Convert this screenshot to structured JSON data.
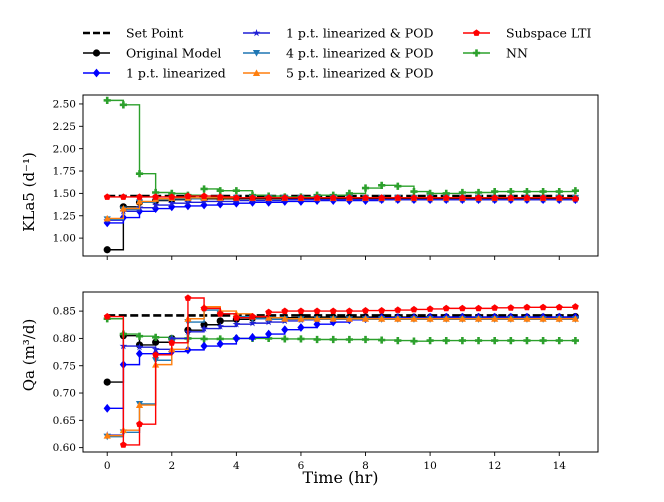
{
  "chart_data": {
    "type": "line",
    "drawstyle": "steps-post",
    "xlabel": "Time (hr)",
    "legend": {
      "placement": "top-center",
      "columns": 3,
      "entries": [
        "Set Point",
        "Original Model",
        "1 p.t. linearized",
        "1 p.t. linearized & POD",
        "4 p.t. linearized & POD",
        "5 p.t. linearized & POD",
        "Subspace LTI",
        "NN"
      ]
    },
    "styles": [
      {
        "name": "Set Point",
        "color": "#000000",
        "marker": "none",
        "dash": true
      },
      {
        "name": "Original Model",
        "color": "#000000",
        "marker": "circle"
      },
      {
        "name": "1 p.t. linearized",
        "color": "#0000ff",
        "marker": "diamond"
      },
      {
        "name": "1 p.t. linearized & POD",
        "color": "#1f1fd6",
        "marker": "star"
      },
      {
        "name": "4 p.t. linearized & POD",
        "color": "#1f77b4",
        "marker": "tri-down"
      },
      {
        "name": "5 p.t. linearized & POD",
        "color": "#ff7f0e",
        "marker": "tri-up"
      },
      {
        "name": "Subspace LTI",
        "color": "#ff0000",
        "marker": "pentagon"
      },
      {
        "name": "NN",
        "color": "#2ca02c",
        "marker": "plus"
      }
    ],
    "x": [
      0,
      0.5,
      1,
      1.5,
      2,
      2.5,
      3,
      3.5,
      4,
      4.5,
      5,
      5.5,
      6,
      6.5,
      7,
      7.5,
      8,
      8.5,
      9,
      9.5,
      10,
      10.5,
      11,
      11.5,
      12,
      12.5,
      13,
      13.5,
      14,
      14.5
    ],
    "xlim": [
      -0.75,
      15.2
    ],
    "xticks": [
      0,
      2,
      4,
      6,
      8,
      10,
      12,
      14
    ],
    "panels": [
      {
        "ylabel": "KLa5 (d⁻¹)",
        "ylim": [
          0.8,
          2.6
        ],
        "yticks": [
          1.0,
          1.25,
          1.5,
          1.75,
          2.0,
          2.25,
          2.5
        ],
        "ytick_labels": [
          "1.00",
          "1.25",
          "1.50",
          "1.75",
          "2.00",
          "2.25",
          "2.50"
        ],
        "series": [
          {
            "name": "Set Point",
            "values": [
              1.47,
              1.47,
              1.47,
              1.47,
              1.47,
              1.47,
              1.47,
              1.47,
              1.47,
              1.47,
              1.47,
              1.47,
              1.47,
              1.47,
              1.47,
              1.47,
              1.47,
              1.47,
              1.47,
              1.47,
              1.47,
              1.47,
              1.47,
              1.47,
              1.47,
              1.47,
              1.47,
              1.47,
              1.47,
              1.47
            ]
          },
          {
            "name": "Original Model",
            "values": [
              0.87,
              1.35,
              1.4,
              1.42,
              1.43,
              1.44,
              1.44,
              1.44,
              1.44,
              1.44,
              1.44,
              1.44,
              1.44,
              1.44,
              1.44,
              1.44,
              1.44,
              1.44,
              1.44,
              1.44,
              1.44,
              1.44,
              1.44,
              1.44,
              1.44,
              1.44,
              1.44,
              1.44,
              1.44,
              1.44
            ]
          },
          {
            "name": "1 p.t. linearized",
            "values": [
              1.17,
              1.23,
              1.3,
              1.33,
              1.35,
              1.36,
              1.37,
              1.38,
              1.39,
              1.4,
              1.4,
              1.41,
              1.41,
              1.42,
              1.42,
              1.42,
              1.42,
              1.43,
              1.43,
              1.43,
              1.43,
              1.43,
              1.43,
              1.43,
              1.43,
              1.43,
              1.43,
              1.43,
              1.43,
              1.43
            ]
          },
          {
            "name": "1 p.t. linearized & POD",
            "values": [
              1.2,
              1.3,
              1.34,
              1.37,
              1.39,
              1.4,
              1.41,
              1.41,
              1.42,
              1.42,
              1.42,
              1.43,
              1.43,
              1.43,
              1.43,
              1.43,
              1.43,
              1.43,
              1.43,
              1.43,
              1.43,
              1.43,
              1.43,
              1.43,
              1.43,
              1.43,
              1.43,
              1.43,
              1.43,
              1.43
            ]
          },
          {
            "name": "4 p.t. linearized & POD",
            "values": [
              1.21,
              1.32,
              1.4,
              1.43,
              1.44,
              1.44,
              1.45,
              1.45,
              1.45,
              1.45,
              1.45,
              1.45,
              1.45,
              1.45,
              1.45,
              1.45,
              1.45,
              1.45,
              1.45,
              1.45,
              1.45,
              1.45,
              1.45,
              1.45,
              1.45,
              1.45,
              1.45,
              1.45,
              1.45,
              1.45
            ]
          },
          {
            "name": "5 p.t. linearized & POD",
            "values": [
              1.22,
              1.33,
              1.41,
              1.44,
              1.45,
              1.45,
              1.45,
              1.45,
              1.45,
              1.45,
              1.45,
              1.45,
              1.45,
              1.45,
              1.45,
              1.45,
              1.45,
              1.45,
              1.45,
              1.45,
              1.45,
              1.45,
              1.45,
              1.45,
              1.45,
              1.45,
              1.45,
              1.45,
              1.45,
              1.45
            ]
          },
          {
            "name": "Subspace LTI",
            "values": [
              1.46,
              1.46,
              1.46,
              1.46,
              1.46,
              1.47,
              1.47,
              1.46,
              1.45,
              1.45,
              1.45,
              1.45,
              1.45,
              1.45,
              1.45,
              1.45,
              1.45,
              1.45,
              1.45,
              1.45,
              1.45,
              1.45,
              1.45,
              1.45,
              1.45,
              1.45,
              1.45,
              1.45,
              1.45,
              1.44
            ]
          },
          {
            "name": "NN",
            "values": [
              2.54,
              2.49,
              1.72,
              1.51,
              1.5,
              1.48,
              1.55,
              1.53,
              1.53,
              1.48,
              1.47,
              1.46,
              1.46,
              1.48,
              1.48,
              1.5,
              1.56,
              1.59,
              1.58,
              1.52,
              1.5,
              1.5,
              1.51,
              1.51,
              1.52,
              1.52,
              1.52,
              1.52,
              1.52,
              1.53
            ]
          }
        ]
      },
      {
        "ylabel": "Qa (m³/d)",
        "ylim": [
          0.592,
          0.885
        ],
        "yticks": [
          0.6,
          0.65,
          0.7,
          0.75,
          0.8,
          0.85
        ],
        "ytick_labels": [
          "0.60",
          "0.65",
          "0.70",
          "0.75",
          "0.80",
          "0.85"
        ],
        "series": [
          {
            "name": "Set Point",
            "values": [
              0.842,
              0.842,
              0.842,
              0.842,
              0.842,
              0.842,
              0.842,
              0.842,
              0.842,
              0.842,
              0.842,
              0.842,
              0.842,
              0.842,
              0.842,
              0.842,
              0.842,
              0.842,
              0.842,
              0.842,
              0.842,
              0.842,
              0.842,
              0.842,
              0.842,
              0.842,
              0.842,
              0.842,
              0.842,
              0.842
            ]
          },
          {
            "name": "Original Model",
            "values": [
              0.72,
              0.805,
              0.788,
              0.793,
              0.8,
              0.815,
              0.825,
              0.832,
              0.835,
              0.837,
              0.838,
              0.838,
              0.839,
              0.839,
              0.839,
              0.839,
              0.839,
              0.839,
              0.839,
              0.839,
              0.839,
              0.839,
              0.839,
              0.839,
              0.839,
              0.839,
              0.839,
              0.839,
              0.839,
              0.84
            ]
          },
          {
            "name": "1 p.t. linearized",
            "values": [
              0.672,
              0.752,
              0.772,
              0.772,
              0.776,
              0.779,
              0.786,
              0.79,
              0.8,
              0.802,
              0.808,
              0.816,
              0.82,
              0.826,
              0.83,
              0.834,
              0.836,
              0.838,
              0.838,
              0.838,
              0.839,
              0.839,
              0.839,
              0.839,
              0.839,
              0.839,
              0.839,
              0.839,
              0.839,
              0.839
            ]
          },
          {
            "name": "1 p.t. linearized & POD",
            "values": [
              0.623,
              0.786,
              0.784,
              0.78,
              0.8,
              0.812,
              0.818,
              0.822,
              0.826,
              0.828,
              0.83,
              0.832,
              0.834,
              0.835,
              0.836,
              0.836,
              0.837,
              0.837,
              0.837,
              0.838,
              0.838,
              0.838,
              0.838,
              0.838,
              0.838,
              0.838,
              0.838,
              0.838,
              0.838,
              0.838
            ]
          },
          {
            "name": "4 p.t. linearized & POD",
            "values": [
              0.62,
              0.628,
              0.68,
              0.76,
              0.792,
              0.83,
              0.852,
              0.845,
              0.84,
              0.836,
              0.835,
              0.835,
              0.835,
              0.835,
              0.835,
              0.835,
              0.835,
              0.835,
              0.835,
              0.835,
              0.835,
              0.835,
              0.835,
              0.835,
              0.835,
              0.835,
              0.835,
              0.835,
              0.835,
              0.835
            ]
          },
          {
            "name": "5 p.t. linearized & POD",
            "values": [
              0.622,
              0.632,
              0.678,
              0.752,
              0.78,
              0.836,
              0.858,
              0.85,
              0.845,
              0.84,
              0.838,
              0.836,
              0.836,
              0.836,
              0.836,
              0.836,
              0.836,
              0.836,
              0.836,
              0.836,
              0.836,
              0.836,
              0.836,
              0.836,
              0.836,
              0.836,
              0.836,
              0.836,
              0.836,
              0.836
            ]
          },
          {
            "name": "Subspace LTI",
            "values": [
              0.84,
              0.605,
              0.643,
              0.77,
              0.792,
              0.874,
              0.855,
              0.845,
              0.838,
              0.84,
              0.848,
              0.85,
              0.85,
              0.85,
              0.85,
              0.85,
              0.851,
              0.851,
              0.852,
              0.853,
              0.854,
              0.855,
              0.855,
              0.855,
              0.856,
              0.856,
              0.857,
              0.857,
              0.857,
              0.858
            ]
          },
          {
            "name": "NN",
            "values": [
              0.836,
              0.808,
              0.804,
              0.802,
              0.8,
              0.8,
              0.799,
              0.799,
              0.8,
              0.8,
              0.8,
              0.799,
              0.799,
              0.798,
              0.798,
              0.798,
              0.798,
              0.797,
              0.796,
              0.795,
              0.796,
              0.796,
              0.796,
              0.796,
              0.796,
              0.796,
              0.796,
              0.796,
              0.796,
              0.796
            ]
          }
        ]
      }
    ]
  }
}
